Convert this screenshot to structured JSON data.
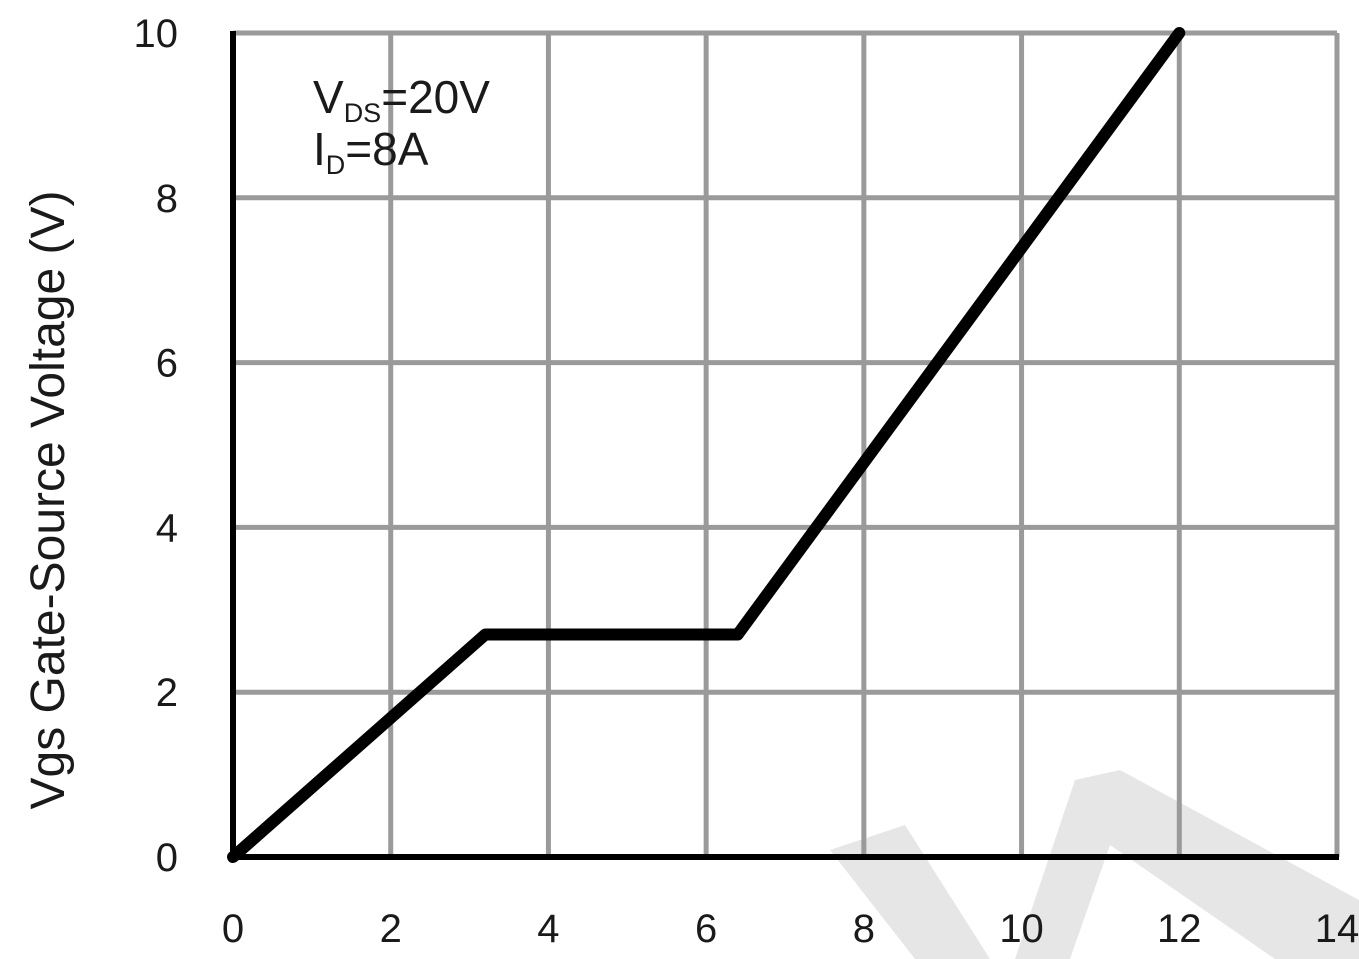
{
  "chart_data": {
    "type": "line",
    "title": "",
    "xlabel": "",
    "ylabel": "Vgs Gate-Source Voltage (V)",
    "xlim": [
      0,
      14
    ],
    "ylim": [
      0,
      10
    ],
    "x_ticks": [
      0,
      2,
      4,
      6,
      8,
      10,
      12,
      14
    ],
    "y_ticks": [
      0,
      2,
      4,
      6,
      8,
      10
    ],
    "grid": true,
    "series": [
      {
        "x": [
          0,
          3.2,
          6.4,
          12
        ],
        "y": [
          0,
          2.7,
          2.7,
          10
        ]
      }
    ],
    "annotations": [
      {
        "main": "V",
        "sub": "DS",
        "rest": "=20V"
      },
      {
        "main": "I",
        "sub": "D",
        "rest": "=8A"
      }
    ],
    "colors": {
      "line": "#000000",
      "grid": "#9a9a9a",
      "axis": "#000000",
      "watermark": "#e3e3e3"
    }
  }
}
